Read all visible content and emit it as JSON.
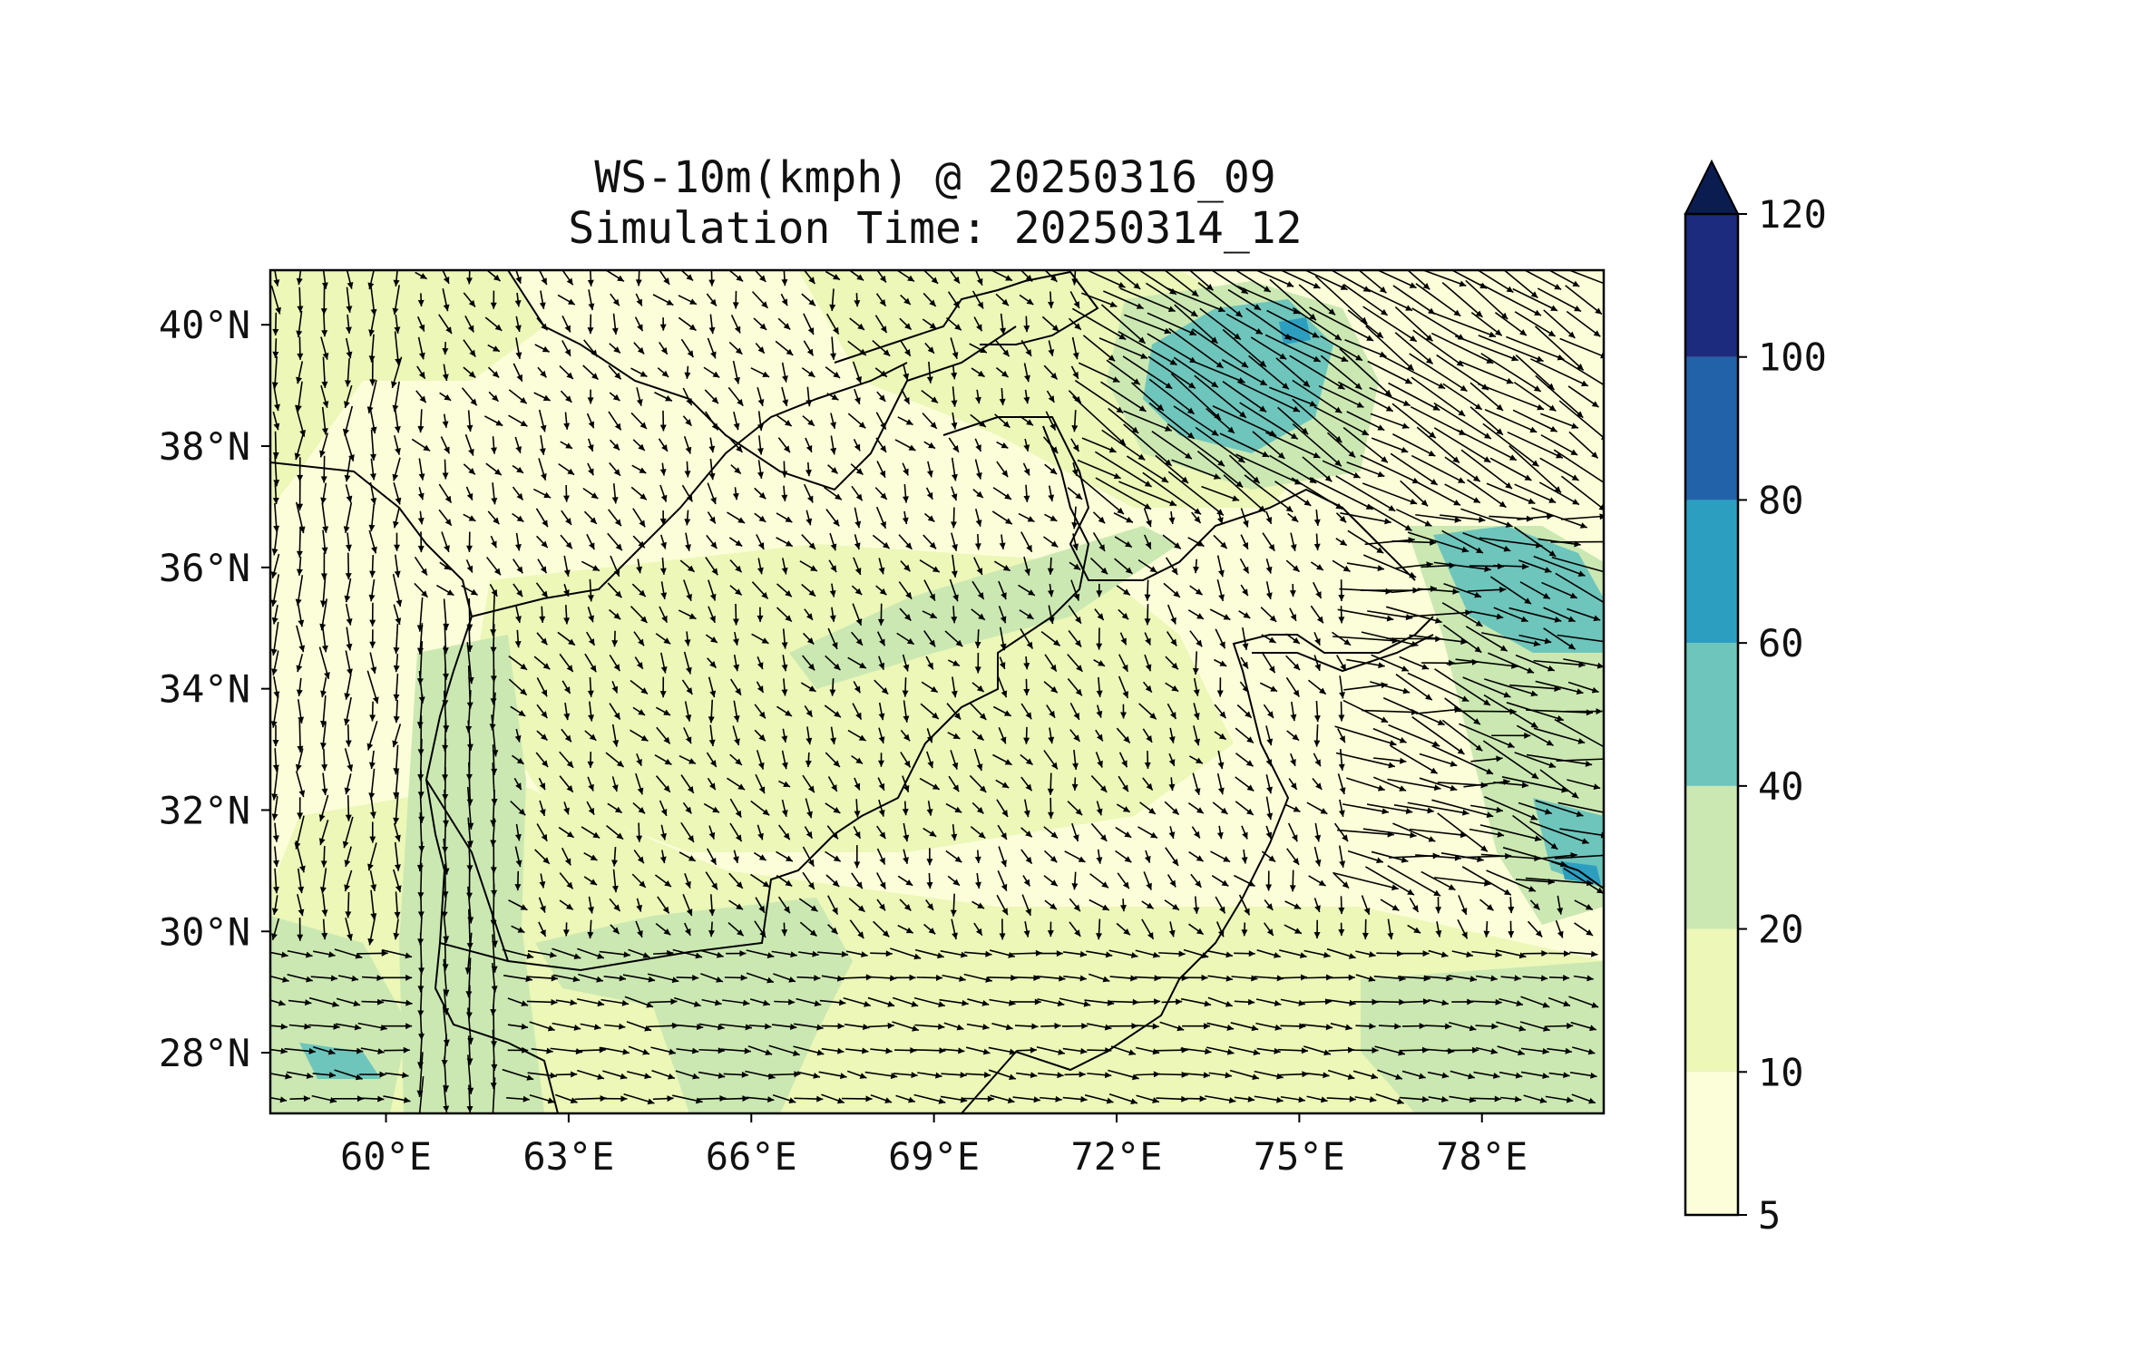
{
  "title": {
    "line1": "WS-10m(kmph) @ 20250316_09",
    "line2": "Simulation Time: 20250314_12"
  },
  "map": {
    "lon_ticks": [
      {
        "value": 60,
        "label": "60°E"
      },
      {
        "value": 63,
        "label": "63°E"
      },
      {
        "value": 66,
        "label": "66°E"
      },
      {
        "value": 69,
        "label": "69°E"
      },
      {
        "value": 72,
        "label": "72°E"
      },
      {
        "value": 75,
        "label": "75°E"
      },
      {
        "value": 78,
        "label": "78°E"
      }
    ],
    "lat_ticks": [
      {
        "value": 40,
        "label": "40°N"
      },
      {
        "value": 38,
        "label": "38°N"
      },
      {
        "value": 36,
        "label": "36°N"
      },
      {
        "value": 34,
        "label": "34°N"
      },
      {
        "value": 32,
        "label": "32°N"
      },
      {
        "value": 30,
        "label": "30°N"
      },
      {
        "value": 28,
        "label": "28°N"
      }
    ],
    "lon_range": [
      58.1,
      80.0
    ],
    "lat_range": [
      27.0,
      40.9
    ]
  },
  "colorbar": {
    "levels": [
      {
        "label": "5",
        "from": 5,
        "to": 10,
        "color": "#fcfed9"
      },
      {
        "label": "10",
        "from": 10,
        "to": 20,
        "color": "#ecf7b8"
      },
      {
        "label": "20",
        "from": 20,
        "to": 40,
        "color": "#cbe8b2"
      },
      {
        "label": "40",
        "from": 40,
        "to": 60,
        "color": "#6ec5bb"
      },
      {
        "label": "60",
        "from": 60,
        "to": 80,
        "color": "#2c9fc1"
      },
      {
        "label": "80",
        "from": 80,
        "to": 100,
        "color": "#2262a9"
      },
      {
        "label": "100",
        "from": 100,
        "to": 120,
        "color": "#1d2b7e"
      },
      {
        "label": "120",
        "from": 120,
        "to": null,
        "color": "#0b1d50"
      }
    ]
  },
  "colors": {
    "background": "#fcfed9",
    "light": "#ecf7b8",
    "green": "#cbe8b2",
    "teal": "#6ec5bb",
    "blue": "#2c9fc1",
    "arrow": "#000000",
    "border": "#000000"
  }
}
